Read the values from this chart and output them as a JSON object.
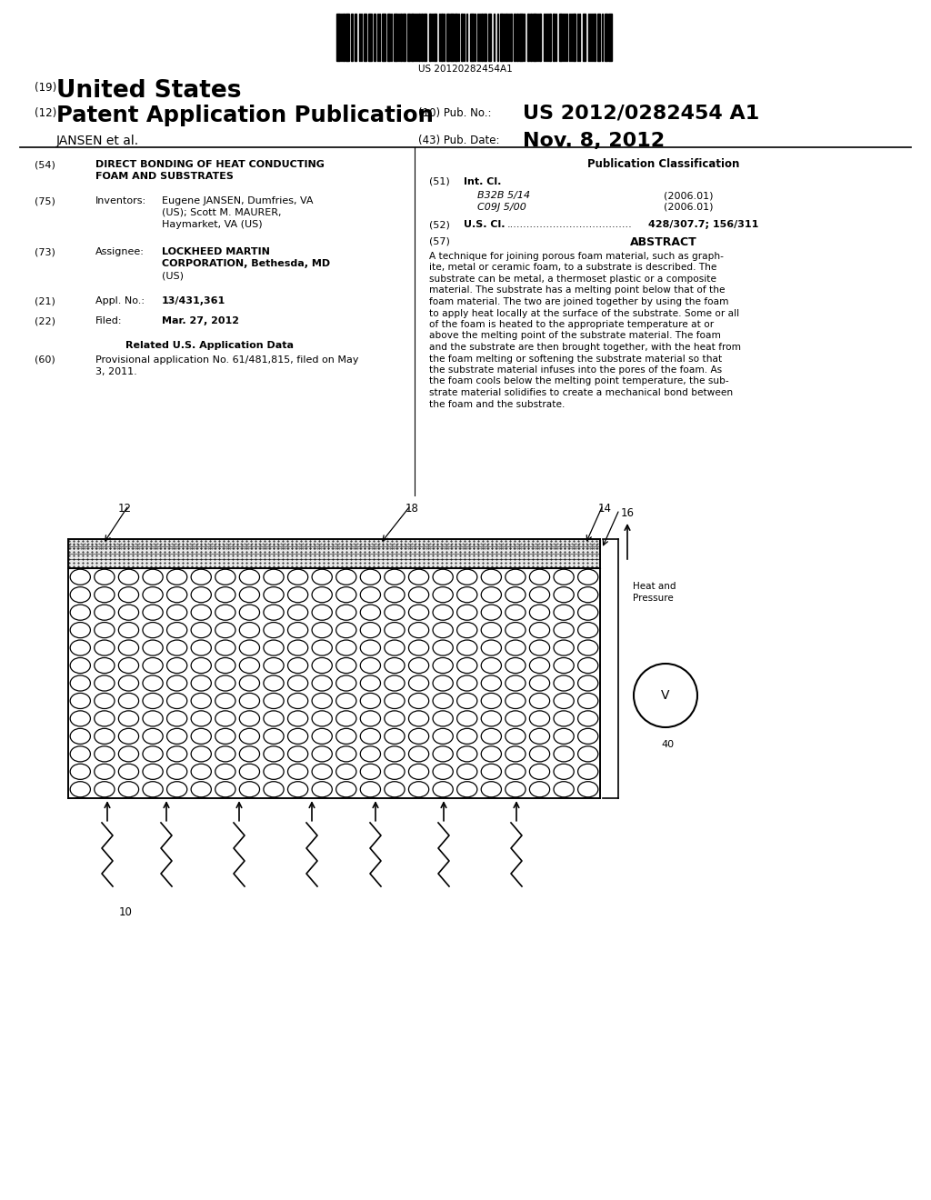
{
  "bg_color": "#ffffff",
  "barcode_text": "US 20120282454A1",
  "us_label": "(19)",
  "us_text": "United States",
  "pat_label": "(12)",
  "pat_text": "Patent Application Publication",
  "pub_no_label": "(10) Pub. No.:",
  "pub_no_value": "US 2012/0282454 A1",
  "pub_date_label": "(43) Pub. Date:",
  "pub_date_value": "Nov. 8, 2012",
  "inventor_label": "JANSEN et al.",
  "field54_label": "(54)",
  "field54_title1": "DIRECT BONDING OF HEAT CONDUCTING",
  "field54_title2": "FOAM AND SUBSTRATES",
  "field75_label": "(75)",
  "field75_name": "Inventors:",
  "field75_val1": "Eugene JANSEN, Dumfries, VA",
  "field75_val2": "(US); Scott M. MAURER,",
  "field75_val3": "Haymarket, VA (US)",
  "field73_label": "(73)",
  "field73_name": "Assignee:",
  "field73_val1": "LOCKHEED MARTIN",
  "field73_val2": "CORPORATION, Bethesda, MD",
  "field73_val3": "(US)",
  "field21_label": "(21)",
  "field21_name": "Appl. No.:",
  "field21_val": "13/431,361",
  "field22_label": "(22)",
  "field22_name": "Filed:",
  "field22_val": "Mar. 27, 2012",
  "related_title": "Related U.S. Application Data",
  "field60_label": "(60)",
  "field60_val1": "Provisional application No. 61/481,815, filed on May",
  "field60_val2": "3, 2011.",
  "pub_class_title": "Publication Classification",
  "field51_label": "(51)",
  "field51_name": "Int. Cl.",
  "field51_b32": "B32B 5/14",
  "field51_b32_year": "(2006.01)",
  "field51_c09": "C09J 5/00",
  "field51_c09_year": "(2006.01)",
  "field52_label": "(52)",
  "field52_name": "U.S. Cl.",
  "field52_dots": "......................................",
  "field52_val": "428/307.7; 156/311",
  "field57_label": "(57)",
  "field57_name": "ABSTRACT",
  "abstract_lines": [
    "A technique for joining porous foam material, such as graph-",
    "ite, metal or ceramic foam, to a substrate is described. The",
    "substrate can be metal, a thermoset plastic or a composite",
    "material. The substrate has a melting point below that of the",
    "foam material. The two are joined together by using the foam",
    "to apply heat locally at the surface of the substrate. Some or all",
    "of the foam is heated to the appropriate temperature at or",
    "above the melting point of the substrate material. The foam",
    "and the substrate are then brought together, with the heat from",
    "the foam melting or softening the substrate material so that",
    "the substrate material infuses into the pores of the foam. As",
    "the foam cools below the melting point temperature, the sub-",
    "strate material solidifies to create a mechanical bond between",
    "the foam and the substrate."
  ],
  "diagram_label12": "12",
  "diagram_label18": "18",
  "diagram_label14": "14",
  "diagram_label16": "16",
  "diagram_label10": "10",
  "diagram_label40": "40",
  "diagram_labelV": "V",
  "heat_pressure_text1": "Heat and",
  "heat_pressure_text2": "Pressure"
}
